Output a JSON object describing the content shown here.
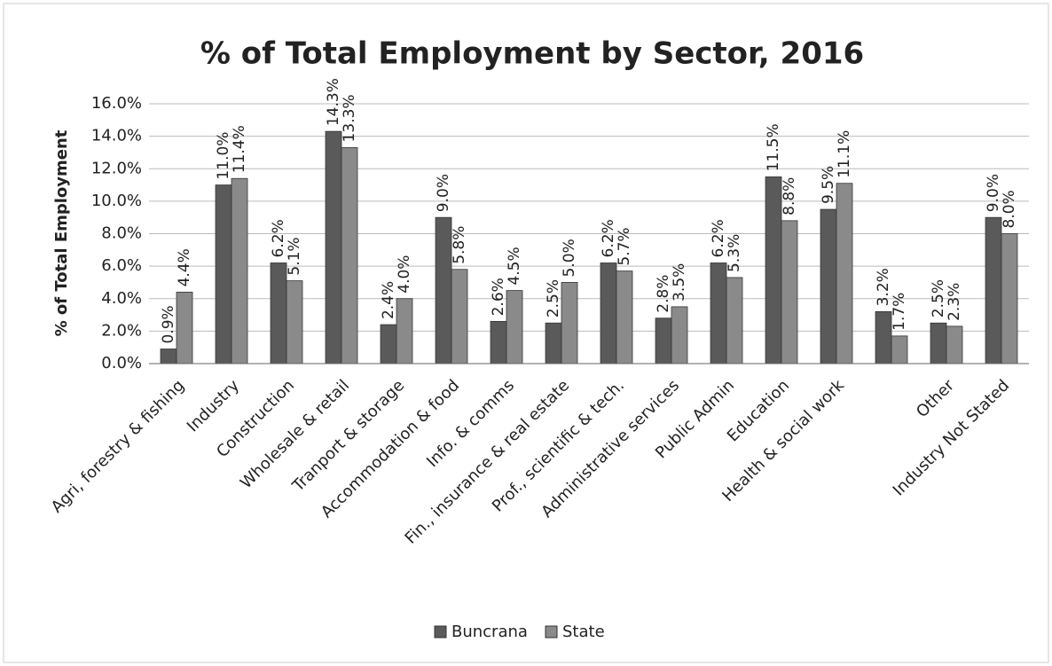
{
  "chart_data": {
    "type": "bar",
    "title": "% of Total Employment by Sector, 2016",
    "y_label": "% of Total Employment",
    "categories": [
      "Agri, forestry & fishing",
      "Industry",
      "Construction",
      "Wholesale & retail",
      "Tranport & storage",
      "Accommodation & food",
      "Info. & comms",
      "Fin., insurance & real estate",
      "Prof., scientific & tech.",
      "Administrative services",
      "Public Admin",
      "Education",
      "Health & social work",
      null,
      "Other",
      "Industry Not Stated"
    ],
    "series": [
      {
        "name": "Buncrana",
        "color": "#5a5a5a",
        "values": [
          0.9,
          11.0,
          6.2,
          14.3,
          2.4,
          9.0,
          2.6,
          2.5,
          6.2,
          2.8,
          6.2,
          11.5,
          9.5,
          3.2,
          2.5,
          9.0
        ],
        "value_labels": [
          "0.9%",
          "11.0%",
          "6.2%",
          "14.3%",
          "2.4%",
          "9.0%",
          "2.6%",
          "2.5%",
          "6.2%",
          "2.8%",
          "6.2%",
          "11.5%",
          "9.5%",
          "3.2%",
          "2.5%",
          "9.0%"
        ]
      },
      {
        "name": "State",
        "color": "#8a8a8a",
        "values": [
          4.4,
          11.4,
          5.1,
          13.3,
          4.0,
          5.8,
          4.5,
          5.0,
          5.7,
          3.5,
          5.3,
          8.8,
          11.1,
          1.7,
          2.3,
          8.0
        ],
        "value_labels": [
          "4.4%",
          "11.4%",
          "5.1%",
          "13.3%",
          "4.0%",
          "5.8%",
          "4.5%",
          "5.0%",
          "5.7%",
          "3.5%",
          "5.3%",
          "8.8%",
          "11.1%",
          "1.7%",
          "2.3%",
          "8.0%"
        ]
      }
    ],
    "ylim": [
      0,
      16
    ],
    "yticks": [
      {
        "value": 0,
        "label": "0.0%"
      },
      {
        "value": 2,
        "label": "2.0%"
      },
      {
        "value": 4,
        "label": "4.0%"
      },
      {
        "value": 6,
        "label": "6.0%"
      },
      {
        "value": 8,
        "label": "8.0%"
      },
      {
        "value": 10,
        "label": "10.0%"
      },
      {
        "value": 12,
        "label": "12.0%"
      },
      {
        "value": 14,
        "label": "14.0%"
      },
      {
        "value": 16,
        "label": "16.0%"
      }
    ],
    "grid": true
  }
}
